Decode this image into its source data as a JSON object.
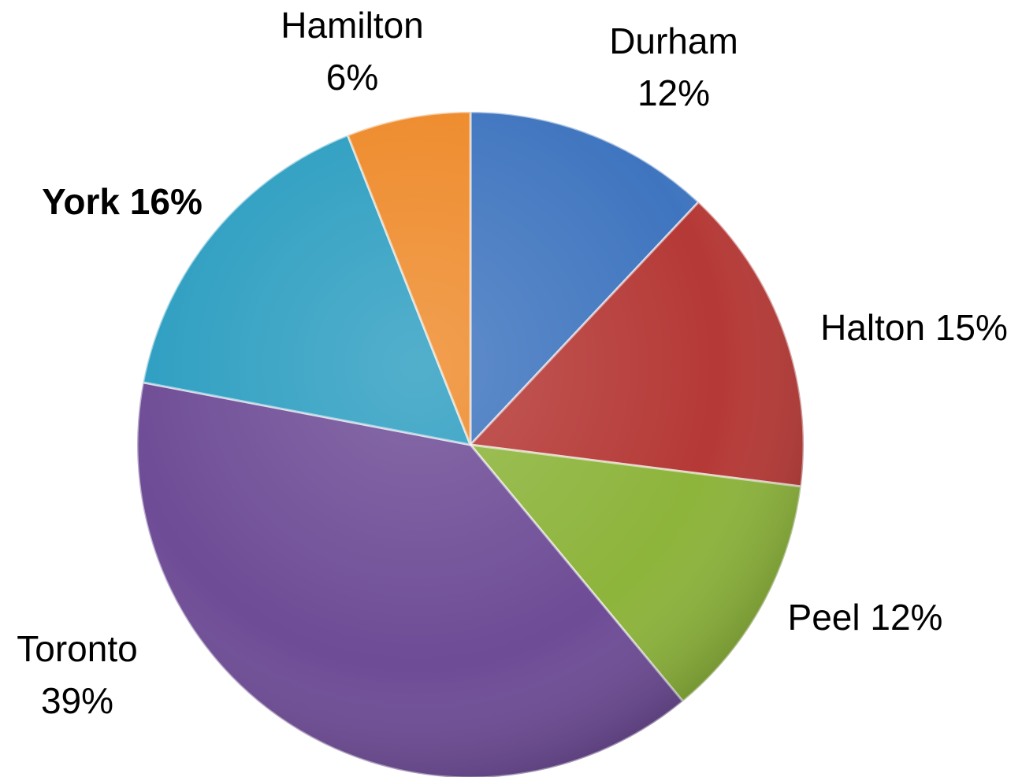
{
  "chart_data": {
    "type": "pie",
    "start_angle_deg": 0,
    "direction": "clockwise",
    "slices": [
      {
        "name": "Durham",
        "value": 12,
        "label_lines": [
          "Durham",
          "12%"
        ],
        "color": "#3f75bf",
        "bold": false
      },
      {
        "name": "Halton",
        "value": 15,
        "label_lines": [
          "Halton 15%"
        ],
        "color": "#b53936",
        "bold": false
      },
      {
        "name": "Peel",
        "value": 12,
        "label_lines": [
          "Peel 12%"
        ],
        "color": "#8db43b",
        "bold": false
      },
      {
        "name": "Toronto",
        "value": 39,
        "label_lines": [
          "Toronto",
          "39%"
        ],
        "color": "#6e4c96",
        "bold": false
      },
      {
        "name": "York",
        "value": 16,
        "label_lines": [
          "York 16%"
        ],
        "color": "#2d9ec1",
        "bold": true
      },
      {
        "name": "Hamilton",
        "value": 6,
        "label_lines": [
          "Hamilton",
          "6%"
        ],
        "color": "#ee8a2a",
        "bold": false
      }
    ]
  }
}
